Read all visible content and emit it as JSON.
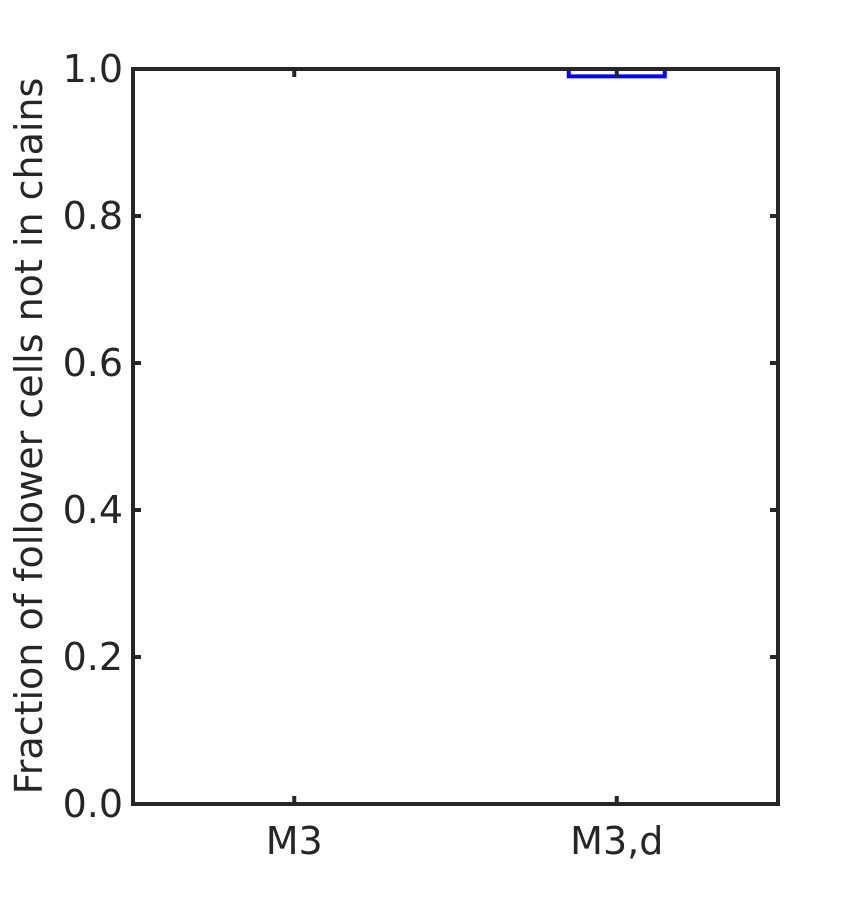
{
  "chart_data": {
    "type": "box",
    "title": "",
    "xlabel": "",
    "ylabel": "Fraction of follower cells not in chains",
    "categories": [
      "M3",
      "M3,d"
    ],
    "ylim": [
      0,
      1
    ],
    "yticks": [
      0,
      0.2,
      0.4,
      0.6,
      0.8,
      1
    ],
    "ytick_labels": [
      "0.0",
      "0.2",
      "0.4",
      "0.6",
      "0.8",
      "1.0"
    ],
    "boxes": [
      {
        "category": "M3",
        "q1": 0,
        "median": 0,
        "q3": 0,
        "whisker_low": 0,
        "whisker_high": 0
      },
      {
        "category": "M3,d",
        "q1": 0.99,
        "median": 1.0,
        "q3": 1.0,
        "whisker_low": 0.99,
        "whisker_high": 1.0
      }
    ],
    "grid": false,
    "colors": {
      "box": "#0000ff",
      "median": "#ff0000",
      "axis": "#262626"
    }
  }
}
